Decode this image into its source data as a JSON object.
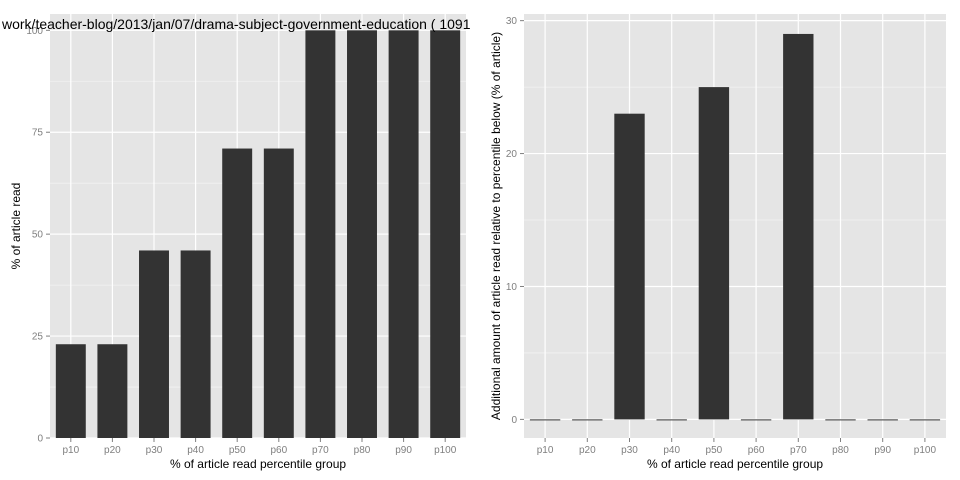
{
  "chart_data": [
    {
      "type": "bar",
      "title": "work/teacher-blog/2013/jan/07/drama-subject-government-education ( 1091",
      "xlabel": "% of article read percentile group",
      "ylabel": "% of article read",
      "categories": [
        "p10",
        "p20",
        "p30",
        "p40",
        "p50",
        "p60",
        "p70",
        "p80",
        "p90",
        "p100"
      ],
      "values": [
        23,
        23,
        46,
        46,
        71,
        71,
        100,
        100,
        100,
        100
      ],
      "ylim": [
        0,
        104
      ],
      "yticks": [
        0,
        25,
        50,
        75,
        100
      ],
      "grid": true,
      "bar_color": "#333333",
      "panel_color": "#e5e5e5"
    },
    {
      "type": "bar",
      "title": "",
      "xlabel": "% of article read percentile group",
      "ylabel": "Additional amount of article read relative to percentile below (% of article)",
      "categories": [
        "p10",
        "p20",
        "p30",
        "p40",
        "p50",
        "p60",
        "p70",
        "p80",
        "p90",
        "p100"
      ],
      "values": [
        0,
        0,
        23,
        0,
        25,
        0,
        29,
        0,
        0,
        0
      ],
      "ylim": [
        -1.4,
        30.5
      ],
      "yticks": [
        0,
        10,
        20,
        30
      ],
      "grid": true,
      "bar_color": "#333333",
      "panel_color": "#e5e5e5"
    }
  ]
}
